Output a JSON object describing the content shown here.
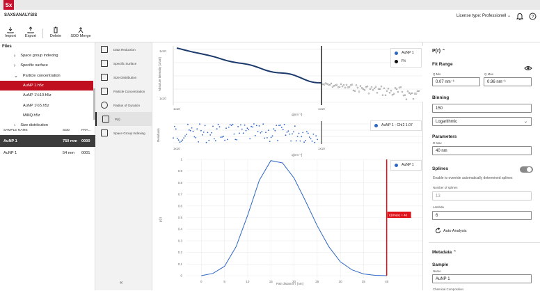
{
  "app": {
    "logo": "Sx",
    "name": "SAXSANALYSIS",
    "license": "License type: Professionell ⌄",
    "icons": [
      "bell-icon",
      "help-icon"
    ]
  },
  "toolbar": {
    "import": "Import",
    "export": "Export",
    "delete": "Delete",
    "sdd_merge": "SDD Merge"
  },
  "files": {
    "title": "Files",
    "items": [
      {
        "label": "Space group indexing",
        "indent": 1,
        "arrow": "›"
      },
      {
        "label": "Specific surface",
        "indent": 1,
        "arrow": "›"
      },
      {
        "label": "Particle concentration",
        "indent": 1,
        "arrow": "⌄"
      },
      {
        "label": "AuNP 1.h5z",
        "indent": 2,
        "arrow": "",
        "selected": true
      },
      {
        "label": "AuNP 1½10.h5z",
        "indent": 2,
        "arrow": ""
      },
      {
        "label": "AuNP 1½5.h5z",
        "indent": 2,
        "arrow": ""
      },
      {
        "label": "MilliQ.h5z",
        "indent": 2,
        "arrow": ""
      },
      {
        "label": "Size distribution",
        "indent": 1,
        "arrow": "›"
      }
    ]
  },
  "samples": {
    "headers": {
      "name": "SAMPLE NAME",
      "sdd": "SDD",
      "frame": "FRA..."
    },
    "rows": [
      {
        "name": "AuNP 1",
        "sdd": "750 mm",
        "frame": "0000",
        "selected": true
      },
      {
        "name": "AuNP 1",
        "sdd": "54 mm",
        "frame": "0001",
        "selected": false
      }
    ]
  },
  "analysis": {
    "items": [
      "Data Reduction",
      "Specific Surface",
      "Size Distribution",
      "Particle Concentration",
      "Radius of Gyration",
      "P(r)",
      "Space Group Indexing"
    ],
    "selected_index": 5,
    "collapse": "«"
  },
  "plot1": {
    "ylabel": "Absolute intensity [1/cm]",
    "xlabel": "q[nm⁻¹]",
    "ytick_top": "1x10",
    "ytick_bottom": "1x10",
    "xtick_left": "1x10",
    "xtick_right": "1x10",
    "legend": [
      {
        "name": "AuNP 1",
        "color": "#2e66c4"
      },
      {
        "name": "Fit",
        "color": "#111111"
      }
    ]
  },
  "plot2": {
    "ylabel": "Residuals",
    "xlabel": "q[nm⁻¹]",
    "xtick_left": "1x10",
    "xtick_right": "1x10",
    "legend": [
      {
        "name": "AuNP 1 - ChI2 1.07",
        "color": "#2e66c4"
      }
    ]
  },
  "plot3": {
    "ylabel": "p(r)",
    "xlabel": "Pair distance r [nm]",
    "legend": [
      {
        "name": "AuNP 1",
        "color": "#2e66c4"
      }
    ],
    "marker_label": "r(Dmax) = 40",
    "yticks": [
      "1",
      "0.9",
      "0.8",
      "0.7",
      "0.6",
      "0.5",
      "0.4",
      "0.3",
      "0.2",
      "0.1",
      "0"
    ],
    "xticks": [
      "0",
      "5",
      "10",
      "15",
      "20",
      "25",
      "30",
      "35",
      "40"
    ]
  },
  "chart_data": {
    "type": "line",
    "title": "",
    "xlabel": "Pair distance r [nm]",
    "ylabel": "p(r)",
    "x": [
      0,
      2.5,
      5,
      7.5,
      10,
      12.5,
      15,
      17.5,
      20,
      22.5,
      25,
      27.5,
      30,
      32.5,
      35,
      37.5,
      40
    ],
    "series": [
      {
        "name": "AuNP 1",
        "values": [
          0,
          0.02,
          0.08,
          0.25,
          0.52,
          0.82,
          0.99,
          0.97,
          0.84,
          0.64,
          0.43,
          0.25,
          0.12,
          0.05,
          0.015,
          0.003,
          0
        ]
      }
    ],
    "xlim": [
      -2,
      45
    ],
    "ylim": [
      0,
      1
    ],
    "vertical_marker_x": 40,
    "grid": true,
    "legend": "top-right"
  },
  "right": {
    "section_title": "P(r)",
    "fit_range": "Fit Range",
    "qmin_label": "Q Min",
    "qmin": "0.07 nm⁻¹",
    "qmax_label": "Q Max",
    "qmax": "0.96 nm⁻¹",
    "binning": "Binning",
    "binning_value": "150",
    "binning_mode": "Logarithmic",
    "parameters": "Parameters",
    "dmax_label": "D Max",
    "dmax": "40 nm",
    "splines": "Splines",
    "splines_desc": "Enable to override automatically determined splines",
    "num_splines_label": "Number of splines",
    "num_splines": "13",
    "lambda_label": "Lambda",
    "lambda": "6",
    "auto_analysis": "Auto Analysis",
    "metadata": "Metadata",
    "sample": "Sample",
    "name_label": "Name",
    "name_value": "AuNP 1",
    "cut_label": "Chemical Composition"
  }
}
